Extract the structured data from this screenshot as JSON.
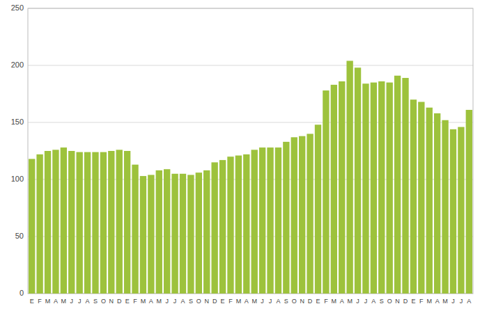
{
  "chart_data": {
    "type": "bar",
    "categories": [
      "E",
      "F",
      "M",
      "A",
      "M",
      "J",
      "J",
      "A",
      "S",
      "O",
      "N",
      "D",
      "E",
      "F",
      "M",
      "A",
      "M",
      "J",
      "J",
      "A",
      "S",
      "O",
      "N",
      "D",
      "E",
      "F",
      "M",
      "A",
      "M",
      "J",
      "J",
      "A",
      "S",
      "O",
      "N",
      "D",
      "E",
      "F",
      "M",
      "A",
      "M",
      "J",
      "J",
      "A",
      "S",
      "O",
      "N",
      "D",
      "E",
      "F",
      "M",
      "A",
      "M",
      "J",
      "J",
      "A"
    ],
    "values": [
      118,
      122,
      125,
      126,
      128,
      125,
      124,
      124,
      124,
      124,
      125,
      126,
      125,
      113,
      103,
      104,
      108,
      109,
      105,
      105,
      104,
      106,
      108,
      115,
      117,
      120,
      121,
      122,
      126,
      128,
      128,
      128,
      133,
      137,
      138,
      140,
      148,
      178,
      183,
      186,
      204,
      198,
      184,
      185,
      186,
      185,
      191,
      189,
      170,
      168,
      163,
      158,
      152,
      144,
      146,
      161
    ],
    "color": "#9dc23c",
    "ylim": [
      0,
      250
    ],
    "yticks": [
      0,
      50,
      100,
      150,
      200,
      250
    ],
    "grid": true
  }
}
